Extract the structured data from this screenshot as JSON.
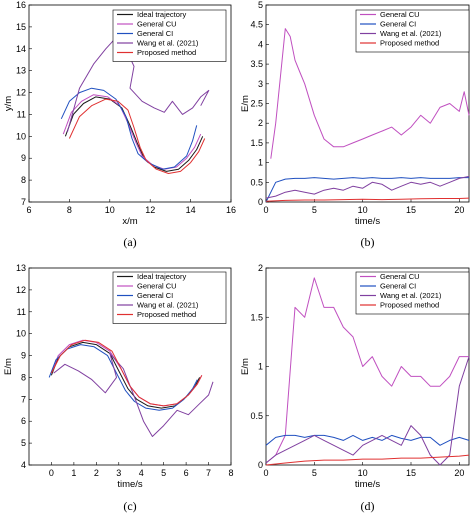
{
  "colors": {
    "ideal": "#1a1a1a",
    "cu": "#c050c0",
    "ci": "#2050c0",
    "wang": "#8040a0",
    "proposed": "#e03030"
  },
  "chart_data": [
    {
      "id": "a",
      "type": "line",
      "caption": "(a)",
      "xlabel": "x/m",
      "ylabel": "y/m",
      "xlim": [
        6,
        16
      ],
      "ylim": [
        7,
        16
      ],
      "xticks": [
        "6",
        "8",
        "10",
        "12",
        "14",
        "16"
      ],
      "yticks": [
        "7",
        "8",
        "9",
        "10",
        "11",
        "12",
        "13",
        "14",
        "15",
        "16"
      ],
      "legend_position": "top-right",
      "series": [
        {
          "name": "Ideal trajectory",
          "key": "ideal",
          "x": [
            7.8,
            8.2,
            8.7,
            9.3,
            10.0,
            10.6,
            11.0,
            11.4,
            11.7,
            12.2,
            12.8,
            13.4,
            13.9,
            14.3,
            14.6
          ],
          "y": [
            10.0,
            11.0,
            11.5,
            11.8,
            11.7,
            11.3,
            10.5,
            9.6,
            9.0,
            8.6,
            8.4,
            8.5,
            8.9,
            9.4,
            10.0
          ]
        },
        {
          "name": "General CU",
          "key": "cu",
          "x": [
            7.7,
            8.1,
            8.6,
            9.2,
            9.9,
            10.5,
            10.9,
            11.3,
            11.6,
            12.1,
            12.7,
            13.3,
            13.8,
            14.2,
            14.5
          ],
          "y": [
            10.1,
            11.1,
            11.6,
            11.9,
            11.8,
            11.4,
            10.6,
            9.7,
            9.1,
            8.7,
            8.5,
            8.6,
            9.0,
            9.5,
            10.1
          ]
        },
        {
          "name": "General CI",
          "key": "ci",
          "x": [
            7.6,
            8.0,
            8.5,
            9.1,
            9.7,
            10.3,
            10.8,
            11.1,
            11.4,
            11.9,
            12.6,
            13.2,
            13.8,
            14.1,
            14.3
          ],
          "y": [
            10.8,
            11.6,
            12.0,
            12.2,
            12.1,
            11.7,
            10.9,
            9.9,
            9.2,
            8.8,
            8.5,
            8.6,
            9.1,
            9.8,
            10.5
          ]
        },
        {
          "name": "Wang et al. (2021)",
          "key": "wang",
          "x": [
            7.9,
            8.5,
            9.2,
            9.8,
            10.3,
            10.7,
            11.2,
            11.0,
            11.6,
            12.2,
            12.7,
            13.1,
            13.6,
            14.1,
            14.5,
            14.9,
            14.5
          ],
          "y": [
            10.2,
            12.2,
            13.3,
            14.0,
            14.5,
            14.2,
            13.2,
            12.2,
            11.6,
            11.3,
            11.1,
            11.6,
            11.0,
            11.3,
            11.8,
            12.1,
            11.4
          ]
        },
        {
          "name": "Proposed method",
          "key": "proposed",
          "x": [
            8.0,
            8.5,
            9.1,
            9.8,
            10.4,
            10.9,
            11.2,
            11.5,
            11.8,
            12.3,
            12.9,
            13.5,
            14.0,
            14.4,
            14.7
          ],
          "y": [
            9.9,
            10.9,
            11.4,
            11.7,
            11.6,
            11.2,
            10.4,
            9.5,
            8.9,
            8.5,
            8.3,
            8.4,
            8.8,
            9.3,
            9.9
          ]
        }
      ]
    },
    {
      "id": "b",
      "type": "line",
      "caption": "(b)",
      "xlabel": "time/s",
      "ylabel": "E/m",
      "xlim": [
        0,
        21
      ],
      "ylim": [
        0,
        5
      ],
      "xticks": [
        "0",
        "5",
        "10",
        "15",
        "20"
      ],
      "yticks": [
        "0",
        "0.5",
        "1",
        "1.5",
        "2",
        "2.5",
        "3",
        "3.5",
        "4",
        "4.5",
        "5"
      ],
      "legend_position": "top-right",
      "series": [
        {
          "name": "General CU",
          "key": "cu",
          "x": [
            0.5,
            1.0,
            1.5,
            2.0,
            2.5,
            3.0,
            3.5,
            4.0,
            5.0,
            6.0,
            7.0,
            8.0,
            9.0,
            10.0,
            11.0,
            12.0,
            13.0,
            14.0,
            15.0,
            16.0,
            17.0,
            18.0,
            19.0,
            20.0,
            20.5,
            21.0
          ],
          "y": [
            1.1,
            2.0,
            3.2,
            4.4,
            4.2,
            3.6,
            3.3,
            3.0,
            2.2,
            1.6,
            1.4,
            1.4,
            1.5,
            1.6,
            1.7,
            1.8,
            1.9,
            1.7,
            1.9,
            2.2,
            2.0,
            2.4,
            2.5,
            2.3,
            2.8,
            2.2
          ]
        },
        {
          "name": "General CI",
          "key": "ci",
          "x": [
            0,
            1,
            2,
            3,
            4,
            5,
            6,
            7,
            8,
            9,
            10,
            11,
            12,
            13,
            14,
            15,
            16,
            17,
            18,
            19,
            20,
            21
          ],
          "y": [
            0.0,
            0.5,
            0.58,
            0.6,
            0.6,
            0.62,
            0.6,
            0.58,
            0.6,
            0.62,
            0.6,
            0.62,
            0.6,
            0.6,
            0.62,
            0.6,
            0.62,
            0.6,
            0.6,
            0.6,
            0.62,
            0.62
          ]
        },
        {
          "name": "Wang et al. (2021)",
          "key": "wang",
          "x": [
            0,
            1,
            2,
            3,
            4,
            5,
            6,
            7,
            8,
            9,
            10,
            11,
            12,
            13,
            14,
            15,
            16,
            17,
            18,
            19,
            20,
            21
          ],
          "y": [
            0.1,
            0.15,
            0.25,
            0.3,
            0.25,
            0.2,
            0.3,
            0.35,
            0.3,
            0.4,
            0.35,
            0.5,
            0.45,
            0.3,
            0.4,
            0.5,
            0.45,
            0.5,
            0.4,
            0.5,
            0.6,
            0.65
          ]
        },
        {
          "name": "Proposed method",
          "key": "proposed",
          "x": [
            0,
            2,
            4,
            6,
            8,
            10,
            12,
            14,
            16,
            18,
            20,
            21
          ],
          "y": [
            0.02,
            0.04,
            0.05,
            0.05,
            0.06,
            0.07,
            0.06,
            0.07,
            0.08,
            0.09,
            0.09,
            0.1
          ]
        }
      ]
    },
    {
      "id": "c",
      "type": "line",
      "caption": "(c)",
      "xlabel": "time/s",
      "ylabel": "E/m",
      "xlim": [
        -1,
        8
      ],
      "ylim": [
        4,
        13
      ],
      "xticks": [
        "0",
        "1",
        "2",
        "3",
        "4",
        "5",
        "6",
        "7",
        "8"
      ],
      "yticks": [
        "4",
        "5",
        "6",
        "7",
        "8",
        "9",
        "10",
        "11",
        "12",
        "13"
      ],
      "legend_position": "top-right",
      "series": [
        {
          "name": "Ideal trajectory",
          "key": "ideal",
          "x": [
            0.0,
            0.3,
            0.8,
            1.4,
            2.0,
            2.6,
            3.0,
            3.4,
            3.8,
            4.3,
            4.9,
            5.5,
            6.0,
            6.4,
            6.6
          ],
          "y": [
            8.1,
            8.9,
            9.4,
            9.6,
            9.5,
            9.1,
            8.3,
            7.5,
            7.0,
            6.7,
            6.6,
            6.7,
            7.1,
            7.6,
            8.0
          ]
        },
        {
          "name": "General CU",
          "key": "cu",
          "x": [
            0.0,
            0.3,
            0.8,
            1.4,
            2.0,
            2.6,
            3.1,
            3.5,
            3.9,
            4.4,
            5.0,
            5.6,
            6.1,
            6.5,
            6.7
          ],
          "y": [
            8.2,
            9.0,
            9.5,
            9.7,
            9.6,
            9.2,
            8.4,
            7.6,
            7.1,
            6.8,
            6.7,
            6.8,
            7.2,
            7.7,
            8.1
          ]
        },
        {
          "name": "General CI",
          "key": "ci",
          "x": [
            -0.1,
            0.2,
            0.7,
            1.3,
            1.9,
            2.5,
            2.9,
            3.3,
            3.7,
            4.2,
            4.8,
            5.4,
            5.9,
            6.3,
            6.5
          ],
          "y": [
            8.0,
            8.8,
            9.3,
            9.5,
            9.4,
            9.0,
            8.2,
            7.4,
            6.9,
            6.6,
            6.5,
            6.6,
            7.0,
            7.5,
            7.9
          ]
        },
        {
          "name": "Wang et al. (2021)",
          "key": "wang",
          "x": [
            0.1,
            0.6,
            1.2,
            1.8,
            2.4,
            2.9,
            2.6,
            3.2,
            3.7,
            4.1,
            4.5,
            5.0,
            5.6,
            6.1,
            6.6,
            7.0,
            7.2
          ],
          "y": [
            8.2,
            8.6,
            8.3,
            7.9,
            7.3,
            8.0,
            9.1,
            8.4,
            7.1,
            6.0,
            5.3,
            5.8,
            6.5,
            6.3,
            6.8,
            7.2,
            7.8
          ]
        },
        {
          "name": "Proposed method",
          "key": "proposed",
          "x": [
            0.0,
            0.4,
            0.9,
            1.5,
            2.1,
            2.7,
            3.1,
            3.5,
            3.9,
            4.4,
            5.0,
            5.6,
            6.1,
            6.5,
            6.7
          ],
          "y": [
            8.2,
            9.0,
            9.5,
            9.7,
            9.6,
            9.2,
            8.4,
            7.6,
            7.1,
            6.8,
            6.7,
            6.8,
            7.2,
            7.7,
            8.1
          ]
        }
      ]
    },
    {
      "id": "d",
      "type": "line",
      "caption": "(d)",
      "xlabel": "time/s",
      "ylabel": "E/m",
      "xlim": [
        0,
        21
      ],
      "ylim": [
        0,
        2
      ],
      "xticks": [
        "0",
        "5",
        "10",
        "15",
        "20"
      ],
      "yticks": [
        "0",
        "0.5",
        "1",
        "1.5",
        "2"
      ],
      "legend_position": "top-right",
      "series": [
        {
          "name": "General CU",
          "key": "cu",
          "x": [
            0,
            1,
            2,
            3,
            4,
            5,
            6,
            7,
            8,
            9,
            10,
            11,
            12,
            13,
            14,
            15,
            16,
            17,
            18,
            19,
            20,
            21
          ],
          "y": [
            0.02,
            0.1,
            0.3,
            1.6,
            1.5,
            1.9,
            1.6,
            1.6,
            1.4,
            1.3,
            1.0,
            1.1,
            0.9,
            0.8,
            1.0,
            0.9,
            0.9,
            0.8,
            0.8,
            0.9,
            1.1,
            1.1
          ]
        },
        {
          "name": "General CI",
          "key": "ci",
          "x": [
            0,
            1,
            2,
            3,
            4,
            5,
            6,
            7,
            8,
            9,
            10,
            11,
            12,
            13,
            14,
            15,
            16,
            17,
            18,
            19,
            20,
            21
          ],
          "y": [
            0.2,
            0.28,
            0.3,
            0.3,
            0.28,
            0.3,
            0.3,
            0.28,
            0.25,
            0.3,
            0.25,
            0.28,
            0.25,
            0.3,
            0.27,
            0.25,
            0.28,
            0.28,
            0.2,
            0.25,
            0.28,
            0.25
          ]
        },
        {
          "name": "Wang et al. (2021)",
          "key": "wang",
          "x": [
            0,
            1,
            2,
            3,
            4,
            5,
            6,
            7,
            8,
            9,
            10,
            11,
            12,
            13,
            14,
            15,
            16,
            17,
            18,
            19,
            20,
            21
          ],
          "y": [
            0.02,
            0.1,
            0.15,
            0.2,
            0.25,
            0.3,
            0.25,
            0.2,
            0.15,
            0.1,
            0.2,
            0.25,
            0.3,
            0.25,
            0.2,
            0.4,
            0.3,
            0.1,
            0.0,
            0.1,
            0.8,
            1.1
          ]
        },
        {
          "name": "Proposed method",
          "key": "proposed",
          "x": [
            0,
            2,
            4,
            6,
            8,
            10,
            12,
            14,
            16,
            18,
            20,
            21
          ],
          "y": [
            0.0,
            0.02,
            0.04,
            0.05,
            0.05,
            0.06,
            0.06,
            0.07,
            0.07,
            0.08,
            0.09,
            0.1
          ]
        }
      ]
    }
  ]
}
